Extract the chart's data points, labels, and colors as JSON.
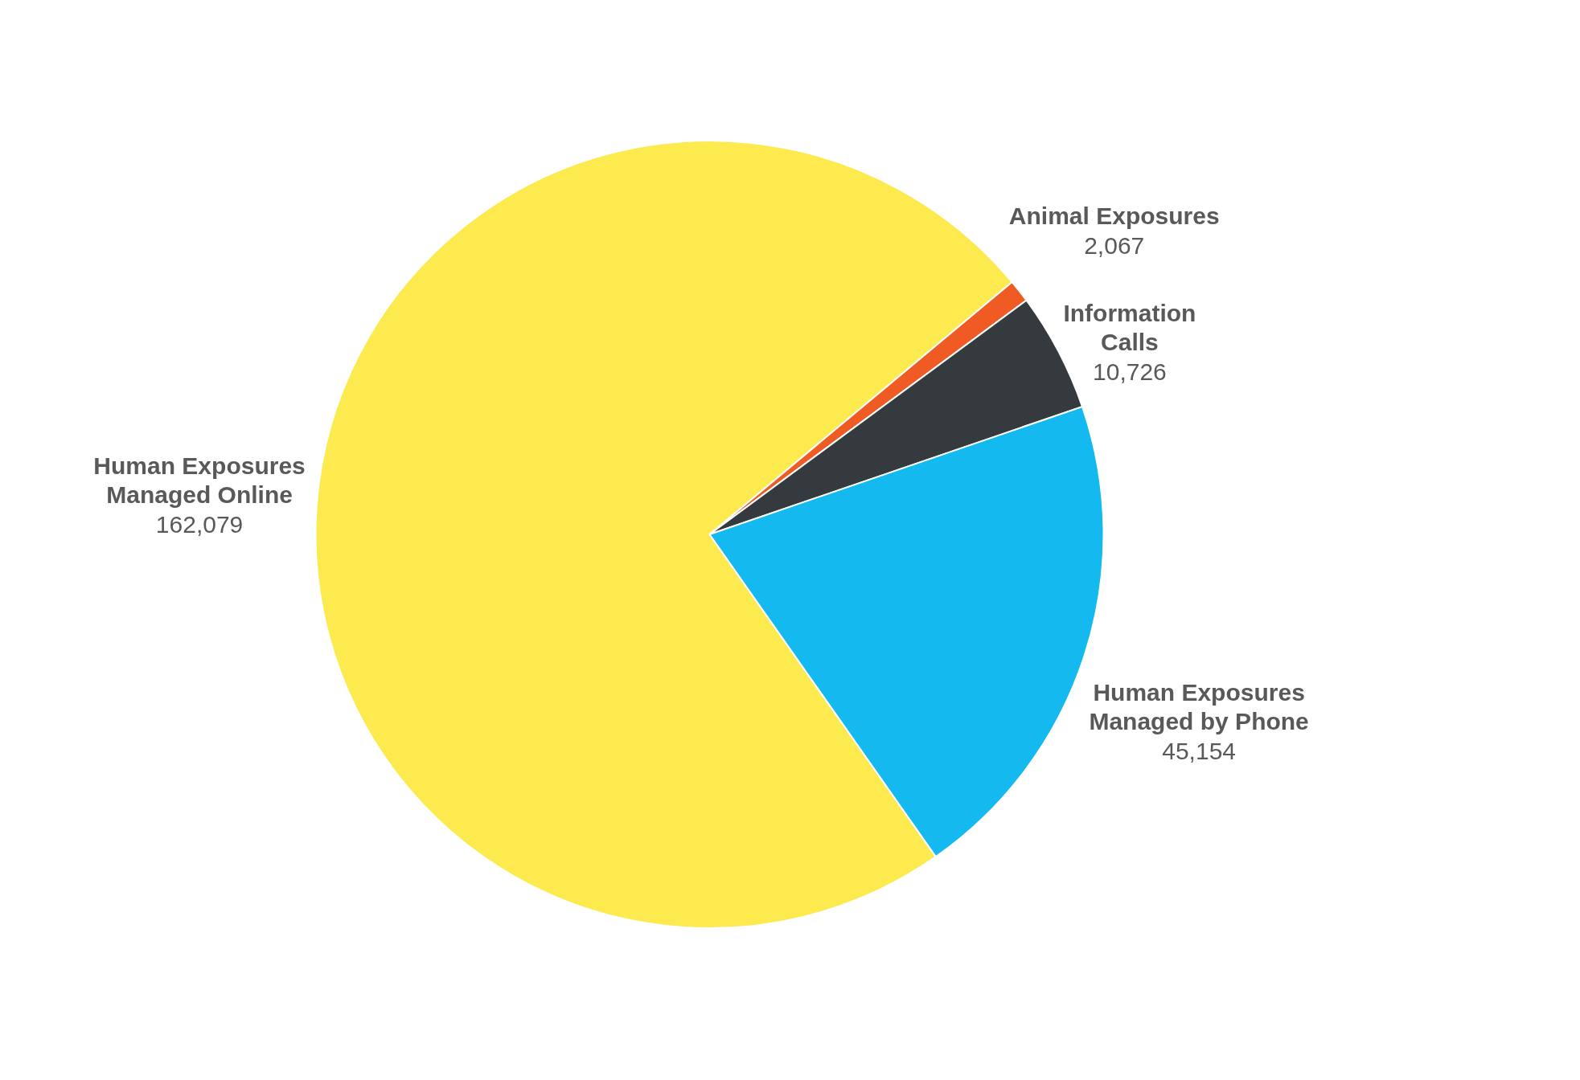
{
  "chart_data": {
    "type": "pie",
    "categories": [
      "Human Exposures Managed Online",
      "Animal Exposures",
      "Information Calls",
      "Human Exposures Managed by Phone"
    ],
    "values": [
      162079,
      2067,
      10726,
      45154
    ],
    "value_labels": [
      "162,079",
      "2,067",
      "10,726",
      "45,154"
    ],
    "colors": [
      "#fcea4f",
      "#f05a23",
      "#353a3e",
      "#13b9ef"
    ],
    "legend": false
  }
}
